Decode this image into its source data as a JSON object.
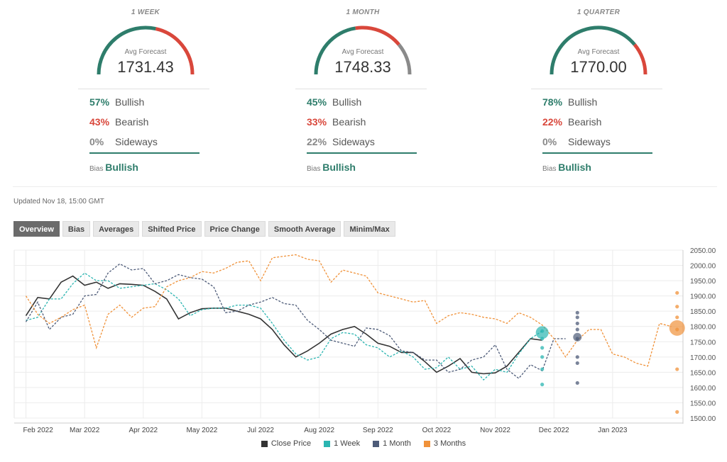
{
  "panels": [
    {
      "period": "1 WEEK",
      "avg_label": "Avg Forecast",
      "avg_value": "1731.43",
      "bullish_pct": "57%",
      "bearish_pct": "43%",
      "sideways_pct": "0%",
      "bullish_label": "Bullish",
      "bearish_label": "Bearish",
      "sideways_label": "Sideways",
      "bias_label": "Bias",
      "bias_value": "Bullish",
      "gauge": {
        "bullish": 57,
        "bearish": 43,
        "sideways": 0
      }
    },
    {
      "period": "1 MONTH",
      "avg_label": "Avg Forecast",
      "avg_value": "1748.33",
      "bullish_pct": "45%",
      "bearish_pct": "33%",
      "sideways_pct": "22%",
      "bullish_label": "Bullish",
      "bearish_label": "Bearish",
      "sideways_label": "Sideways",
      "bias_label": "Bias",
      "bias_value": "Bullish",
      "gauge": {
        "bullish": 45,
        "bearish": 33,
        "sideways": 22
      }
    },
    {
      "period": "1 QUARTER",
      "avg_label": "Avg Forecast",
      "avg_value": "1770.00",
      "bullish_pct": "78%",
      "bearish_pct": "22%",
      "sideways_pct": "0%",
      "bullish_label": "Bullish",
      "bearish_label": "Bearish",
      "sideways_label": "Sideways",
      "bias_label": "Bias",
      "bias_value": "Bullish",
      "gauge": {
        "bullish": 78,
        "bearish": 22,
        "sideways": 0
      }
    }
  ],
  "updated": "Updated Nov 18, 15:00 GMT",
  "tabs": [
    "Overview",
    "Bias",
    "Averages",
    "Shifted Price",
    "Price Change",
    "Smooth Average",
    "Minim/Max"
  ],
  "active_tab": "Overview",
  "colors": {
    "bullish": "#2e7d6b",
    "bearish": "#d9473b",
    "sideways": "#8a8a8a",
    "close": "#333333",
    "week": "#2bb5b1",
    "month": "#4d5b78",
    "quarter": "#f0923a"
  },
  "legend": [
    "Close Price",
    "1 Week",
    "1 Month",
    "3 Months"
  ],
  "chart_data": {
    "type": "line",
    "ylim": [
      1500,
      2050
    ],
    "yticks": [
      "2050.00",
      "2000.00",
      "1950.00",
      "1900.00",
      "1850.00",
      "1800.00",
      "1750.00",
      "1700.00",
      "1650.00",
      "1600.00",
      "1550.00",
      "1500.00"
    ],
    "xlim": [
      0,
      11.4
    ],
    "xticks": [
      {
        "label": "Feb 2022",
        "x": 0.2
      },
      {
        "label": "Mar 2022",
        "x": 1.2
      },
      {
        "label": "Apr 2022",
        "x": 2.2
      },
      {
        "label": "May 2022",
        "x": 3.2
      },
      {
        "label": "Jul 2022",
        "x": 4.2
      },
      {
        "label": "Aug 2022",
        "x": 5.2
      },
      {
        "label": "Sep 2022",
        "x": 6.2
      },
      {
        "label": "Oct 2022",
        "x": 7.2
      },
      {
        "label": "Nov 2022",
        "x": 8.2
      },
      {
        "label": "Dec 2022",
        "x": 9.2
      },
      {
        "label": "Jan 2023",
        "x": 10.2
      }
    ],
    "series": [
      {
        "name": "Close Price",
        "dashed": false,
        "points": [
          [
            0.2,
            1835
          ],
          [
            0.4,
            1895
          ],
          [
            0.6,
            1890
          ],
          [
            0.8,
            1945
          ],
          [
            1.0,
            1965
          ],
          [
            1.2,
            1935
          ],
          [
            1.4,
            1945
          ],
          [
            1.6,
            1925
          ],
          [
            1.8,
            1940
          ],
          [
            2.0,
            1938
          ],
          [
            2.2,
            1935
          ],
          [
            2.4,
            1915
          ],
          [
            2.6,
            1890
          ],
          [
            2.8,
            1825
          ],
          [
            3.0,
            1845
          ],
          [
            3.2,
            1858
          ],
          [
            3.4,
            1860
          ],
          [
            3.6,
            1860
          ],
          [
            3.8,
            1850
          ],
          [
            4.0,
            1840
          ],
          [
            4.2,
            1825
          ],
          [
            4.4,
            1790
          ],
          [
            4.6,
            1740
          ],
          [
            4.8,
            1700
          ],
          [
            5.0,
            1720
          ],
          [
            5.2,
            1745
          ],
          [
            5.4,
            1775
          ],
          [
            5.6,
            1790
          ],
          [
            5.8,
            1800
          ],
          [
            6.0,
            1775
          ],
          [
            6.2,
            1745
          ],
          [
            6.4,
            1735
          ],
          [
            6.6,
            1715
          ],
          [
            6.8,
            1715
          ],
          [
            7.0,
            1685
          ],
          [
            7.2,
            1650
          ],
          [
            7.4,
            1670
          ],
          [
            7.6,
            1695
          ],
          [
            7.8,
            1650
          ],
          [
            8.0,
            1645
          ],
          [
            8.2,
            1648
          ],
          [
            8.4,
            1670
          ],
          [
            8.6,
            1715
          ],
          [
            8.8,
            1760
          ],
          [
            9.0,
            1755
          ]
        ]
      },
      {
        "name": "1 Week",
        "dashed": true,
        "points": [
          [
            0.2,
            1820
          ],
          [
            0.4,
            1830
          ],
          [
            0.6,
            1890
          ],
          [
            0.8,
            1890
          ],
          [
            1.0,
            1940
          ],
          [
            1.2,
            1975
          ],
          [
            1.4,
            1950
          ],
          [
            1.6,
            1950
          ],
          [
            1.8,
            1925
          ],
          [
            2.0,
            1930
          ],
          [
            2.2,
            1935
          ],
          [
            2.4,
            1940
          ],
          [
            2.6,
            1920
          ],
          [
            2.8,
            1890
          ],
          [
            3.0,
            1835
          ],
          [
            3.2,
            1855
          ],
          [
            3.4,
            1860
          ],
          [
            3.6,
            1860
          ],
          [
            3.8,
            1870
          ],
          [
            4.0,
            1870
          ],
          [
            4.2,
            1860
          ],
          [
            4.4,
            1810
          ],
          [
            4.6,
            1755
          ],
          [
            4.8,
            1710
          ],
          [
            5.0,
            1690
          ],
          [
            5.2,
            1700
          ],
          [
            5.4,
            1760
          ],
          [
            5.6,
            1780
          ],
          [
            5.8,
            1775
          ],
          [
            6.0,
            1740
          ],
          [
            6.2,
            1730
          ],
          [
            6.4,
            1700
          ],
          [
            6.6,
            1720
          ],
          [
            6.8,
            1700
          ],
          [
            7.0,
            1660
          ],
          [
            7.2,
            1665
          ],
          [
            7.4,
            1700
          ],
          [
            7.6,
            1660
          ],
          [
            7.8,
            1670
          ],
          [
            8.0,
            1625
          ],
          [
            8.2,
            1660
          ],
          [
            8.4,
            1650
          ],
          [
            8.6,
            1710
          ],
          [
            8.8,
            1760
          ],
          [
            9.0,
            1785
          ]
        ]
      },
      {
        "name": "1 Month",
        "dashed": true,
        "points": [
          [
            0.2,
            1815
          ],
          [
            0.4,
            1880
          ],
          [
            0.6,
            1790
          ],
          [
            0.8,
            1830
          ],
          [
            1.0,
            1840
          ],
          [
            1.2,
            1900
          ],
          [
            1.4,
            1905
          ],
          [
            1.6,
            1975
          ],
          [
            1.8,
            2005
          ],
          [
            2.0,
            1985
          ],
          [
            2.2,
            1990
          ],
          [
            2.4,
            1940
          ],
          [
            2.6,
            1950
          ],
          [
            2.8,
            1970
          ],
          [
            3.0,
            1960
          ],
          [
            3.2,
            1955
          ],
          [
            3.4,
            1930
          ],
          [
            3.6,
            1845
          ],
          [
            3.8,
            1850
          ],
          [
            4.0,
            1870
          ],
          [
            4.2,
            1880
          ],
          [
            4.4,
            1895
          ],
          [
            4.6,
            1875
          ],
          [
            4.8,
            1870
          ],
          [
            5.0,
            1820
          ],
          [
            5.2,
            1790
          ],
          [
            5.4,
            1755
          ],
          [
            5.6,
            1745
          ],
          [
            5.8,
            1735
          ],
          [
            6.0,
            1795
          ],
          [
            6.2,
            1790
          ],
          [
            6.4,
            1770
          ],
          [
            6.6,
            1720
          ],
          [
            6.8,
            1715
          ],
          [
            7.0,
            1690
          ],
          [
            7.2,
            1690
          ],
          [
            7.4,
            1650
          ],
          [
            7.6,
            1660
          ],
          [
            7.8,
            1690
          ],
          [
            8.0,
            1700
          ],
          [
            8.2,
            1740
          ],
          [
            8.4,
            1660
          ],
          [
            8.6,
            1630
          ],
          [
            8.8,
            1675
          ],
          [
            9.0,
            1655
          ],
          [
            9.2,
            1760
          ],
          [
            9.4,
            1760
          ]
        ]
      },
      {
        "name": "3 Months",
        "dashed": true,
        "points": [
          [
            0.2,
            1900
          ],
          [
            0.4,
            1840
          ],
          [
            0.6,
            1810
          ],
          [
            0.8,
            1830
          ],
          [
            1.0,
            1855
          ],
          [
            1.2,
            1870
          ],
          [
            1.4,
            1730
          ],
          [
            1.6,
            1840
          ],
          [
            1.8,
            1870
          ],
          [
            2.0,
            1830
          ],
          [
            2.2,
            1860
          ],
          [
            2.4,
            1865
          ],
          [
            2.6,
            1930
          ],
          [
            2.8,
            1950
          ],
          [
            3.0,
            1960
          ],
          [
            3.2,
            1980
          ],
          [
            3.4,
            1975
          ],
          [
            3.6,
            1990
          ],
          [
            3.8,
            2010
          ],
          [
            4.0,
            2015
          ],
          [
            4.2,
            1950
          ],
          [
            4.4,
            2025
          ],
          [
            4.6,
            2030
          ],
          [
            4.8,
            2035
          ],
          [
            5.0,
            2020
          ],
          [
            5.2,
            2015
          ],
          [
            5.4,
            1945
          ],
          [
            5.6,
            1985
          ],
          [
            5.8,
            1975
          ],
          [
            6.0,
            1965
          ],
          [
            6.2,
            1910
          ],
          [
            6.4,
            1900
          ],
          [
            6.6,
            1890
          ],
          [
            6.8,
            1880
          ],
          [
            7.0,
            1885
          ],
          [
            7.2,
            1810
          ],
          [
            7.4,
            1835
          ],
          [
            7.6,
            1845
          ],
          [
            7.8,
            1840
          ],
          [
            8.0,
            1830
          ],
          [
            8.2,
            1825
          ],
          [
            8.4,
            1810
          ],
          [
            8.6,
            1845
          ],
          [
            8.8,
            1830
          ],
          [
            9.0,
            1805
          ],
          [
            9.2,
            1760
          ],
          [
            9.4,
            1700
          ],
          [
            9.6,
            1755
          ],
          [
            9.8,
            1790
          ],
          [
            10.0,
            1790
          ],
          [
            10.2,
            1710
          ],
          [
            10.4,
            1700
          ],
          [
            10.6,
            1680
          ],
          [
            10.8,
            1670
          ],
          [
            11.0,
            1810
          ],
          [
            11.2,
            1800
          ]
        ]
      }
    ],
    "scatter": [
      {
        "series": "1 Week",
        "x": 9.0,
        "values": [
          1785,
          1760,
          1730,
          1700,
          1660,
          1610
        ]
      },
      {
        "series": "1 Month",
        "x": 9.6,
        "values": [
          1845,
          1830,
          1810,
          1790,
          1760,
          1700,
          1680,
          1615
        ]
      },
      {
        "series": "3 Months",
        "x": 11.3,
        "values": [
          1910,
          1865,
          1830,
          1790,
          1660,
          1520
        ]
      }
    ],
    "averages": [
      {
        "series": "1 Week",
        "x": 9.0,
        "value": 1780
      },
      {
        "series": "1 Month",
        "x": 9.6,
        "value": 1765
      },
      {
        "series": "3 Months",
        "x": 11.3,
        "value": 1795
      }
    ]
  }
}
